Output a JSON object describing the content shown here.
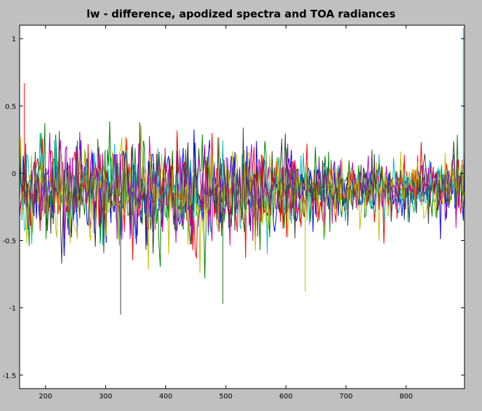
{
  "chart_data": {
    "type": "line",
    "title": "lw - difference, apodized spectra and TOA radiances",
    "xlabel": "",
    "ylabel": "",
    "xlim": [
      157,
      897
    ],
    "ylim": [
      -1.6,
      1.1
    ],
    "xticks": [
      200,
      300,
      400,
      500,
      600,
      700,
      800
    ],
    "yticks": [
      -1.5,
      -1,
      -0.5,
      0,
      0.5,
      1
    ],
    "x_step": 2,
    "series_count": 7,
    "series_colors": [
      "#0000ff",
      "#008000",
      "#ff0000",
      "#00bfbf",
      "#bf00bf",
      "#bfbf00",
      "#404040"
    ],
    "mean_profile": [
      {
        "x": 160,
        "y": -0.12
      },
      {
        "x": 300,
        "y": -0.14
      },
      {
        "x": 450,
        "y": -0.15
      },
      {
        "x": 600,
        "y": -0.12
      },
      {
        "x": 700,
        "y": -0.12
      },
      {
        "x": 800,
        "y": -0.1
      },
      {
        "x": 897,
        "y": -0.1
      }
    ],
    "spread_profile": [
      {
        "x": 160,
        "y": 0.18
      },
      {
        "x": 300,
        "y": 0.19
      },
      {
        "x": 450,
        "y": 0.19
      },
      {
        "x": 600,
        "y": 0.16
      },
      {
        "x": 700,
        "y": 0.11
      },
      {
        "x": 800,
        "y": 0.1
      },
      {
        "x": 897,
        "y": 0.12
      }
    ],
    "notable_points": [
      {
        "x": 895,
        "y": 1.08
      },
      {
        "x": 325,
        "y": -1.05
      },
      {
        "x": 165,
        "y": 0.67
      },
      {
        "x": 632,
        "y": -0.88
      },
      {
        "x": 495,
        "y": -0.97
      }
    ]
  }
}
